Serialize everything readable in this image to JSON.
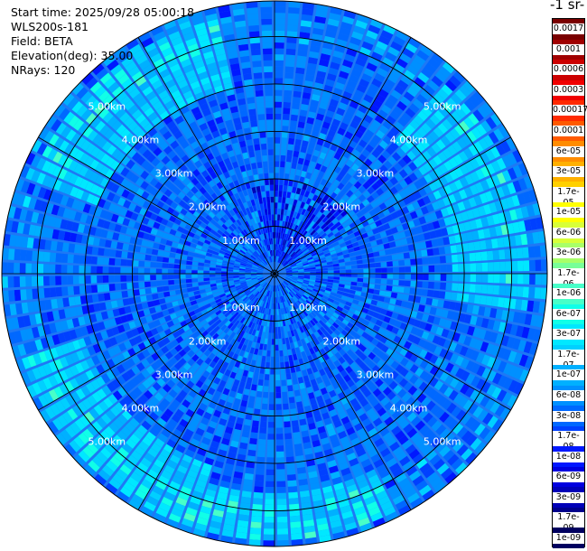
{
  "info": {
    "start_time": "Start time: 2025/09/28 05:00:18",
    "instrument": "WLS200s-181",
    "field": "Field: BETA",
    "elevation": "Elevation(deg): 35.00",
    "nrays": "NRays: 120"
  },
  "colorbar": {
    "unit_fragment": "-1 sr-",
    "labels": [
      "0.0017",
      "0.001",
      "0.0006",
      "0.0003",
      "0.00017",
      "0.0001",
      "6e-05",
      "3e-05",
      "1.7e-05",
      "1e-05",
      "6e-06",
      "3e-06",
      "1.7e-06",
      "1e-06",
      "6e-07",
      "3e-07",
      "1.7e-07",
      "1e-07",
      "6e-08",
      "3e-08",
      "1.7e-08",
      "1e-08",
      "6e-09",
      "3e-09",
      "1.7e-09",
      "1e-09"
    ],
    "colors": [
      "#7a0000",
      "#a00000",
      "#cc0000",
      "#f00000",
      "#ff2a00",
      "#ff5a00",
      "#ff8c00",
      "#ffb000",
      "#ffd000",
      "#ffff00",
      "#d8ff38",
      "#a8ff68",
      "#78ff98",
      "#48ffc8",
      "#10ffe8",
      "#00e8ff",
      "#00d0ff",
      "#00b0ff",
      "#0090ff",
      "#0068ff",
      "#0040ff",
      "#0018ff",
      "#0000e0",
      "#0000b8",
      "#00008c",
      "#000060"
    ]
  },
  "chart_data": {
    "type": "heatmap",
    "title": "",
    "projection": "polar",
    "rays": 120,
    "range_ring_labels": [
      "1.00km",
      "2.00km",
      "3.00km",
      "4.00km",
      "5.00km"
    ],
    "range_rings_km": [
      1,
      2,
      3,
      4,
      5
    ],
    "max_range_km": 5.75,
    "grid": true,
    "value_scale": "log",
    "value_range": [
      1e-09,
      0.0017
    ],
    "typical_value": 3e-08,
    "enhanced_regions": [
      {
        "azimuth_deg": 320,
        "range_km": [
          4.0,
          5.5
        ],
        "value": 1.7e-07
      },
      {
        "azimuth_deg": 70,
        "range_km": [
          3.8,
          5.4
        ],
        "value": 1.7e-07
      },
      {
        "azimuth_deg": 180,
        "range_km": [
          4.6,
          5.6
        ],
        "value": 1.7e-07
      },
      {
        "azimuth_deg": 225,
        "range_km": [
          4.3,
          5.6
        ],
        "value": 1.7e-07
      }
    ],
    "low_regions": [
      {
        "azimuth_deg": 20,
        "range_km": [
          0.2,
          2.0
        ],
        "value": 6e-09
      }
    ]
  }
}
